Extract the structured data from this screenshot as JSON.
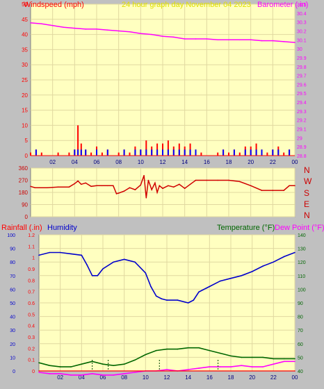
{
  "header": {
    "left_label": "Windspeed (mph)",
    "center_label": "24 hour graph day   November 04 2023",
    "right_label": "Barometer (.in)"
  },
  "middle": {
    "compass_labels": [
      "N",
      "W",
      "S",
      "E",
      "N"
    ]
  },
  "lower_header": {
    "rainfall_label": "Rainfall (.in)",
    "humidity_label": "Humidity",
    "temperature_label": "Temperature (°F)",
    "dewpoint_label": "Dew Point (°F)"
  },
  "colors": {
    "plot_bg": "#ffffc0",
    "wind": "#ff0000",
    "gust": "#0000ff",
    "barometer": "#ff00ff",
    "direction": "#d00000",
    "humidity": "#0000cc",
    "temperature": "#006600",
    "dewpoint": "#ff00ff",
    "rain": "#ff0000",
    "title": "#e0e000"
  },
  "chart_data": [
    {
      "type": "line",
      "name": "wind-barometer",
      "x_ticks": [
        "02",
        "04",
        "06",
        "08",
        "10",
        "12",
        "14",
        "16",
        "18",
        "20",
        "22",
        "00"
      ],
      "x_range_hours": [
        0,
        24
      ],
      "y_left_ticks": [
        0,
        5,
        10,
        15,
        20,
        25,
        30,
        35,
        40,
        45,
        50
      ],
      "y_left_range": [
        0,
        50
      ],
      "y_right_ticks": [
        "28.8",
        "28.9",
        "29",
        "29.1",
        "29.2",
        "29.3",
        "29.4",
        "29.5",
        "29.6",
        "29.7",
        "29.8",
        "29.9",
        "30",
        "30.1",
        "30.2",
        "30.3",
        "30.4",
        "30.5"
      ],
      "y_right_range": [
        28.8,
        30.5
      ],
      "series": [
        {
          "name": "Barometer (.in)",
          "axis": "right",
          "x": [
            0,
            1,
            2,
            3,
            4,
            5,
            6,
            7,
            8,
            9,
            10,
            11,
            12,
            13,
            14,
            15,
            16,
            17,
            18,
            19,
            20,
            21,
            22,
            23,
            24
          ],
          "y": [
            30.29,
            30.28,
            30.26,
            30.24,
            30.23,
            30.22,
            30.22,
            30.21,
            30.2,
            30.19,
            30.17,
            30.16,
            30.14,
            30.13,
            30.11,
            30.11,
            30.11,
            30.1,
            30.1,
            30.1,
            30.1,
            30.09,
            30.09,
            30.08,
            30.07
          ]
        },
        {
          "name": "Windspeed (mph)",
          "axis": "left",
          "x": [
            0,
            0.5,
            1,
            1.5,
            2,
            2.5,
            3,
            3.5,
            4,
            4.3,
            4.6,
            5,
            5.5,
            6,
            6.5,
            7,
            7.5,
            8,
            8.5,
            9,
            9.5,
            10,
            10.5,
            11,
            11.5,
            12,
            12.5,
            13,
            13.5,
            14,
            14.5,
            15,
            15.5,
            16,
            16.5,
            17,
            17.5,
            18,
            18.5,
            19,
            19.5,
            20,
            20.5,
            21,
            21.5,
            22,
            22.5,
            23,
            23.5,
            24
          ],
          "y": [
            1,
            2,
            1,
            0,
            0,
            1,
            0,
            1,
            2,
            10,
            4,
            2,
            1,
            3,
            1,
            2,
            0,
            1,
            2,
            1,
            3,
            2,
            5,
            3,
            4,
            4,
            5,
            3,
            4,
            3,
            4,
            2,
            1,
            0,
            0,
            1,
            2,
            1,
            2,
            1,
            3,
            3,
            4,
            2,
            1,
            2,
            3,
            1,
            2,
            0
          ]
        }
      ]
    },
    {
      "type": "line",
      "name": "wind-direction",
      "y_ticks": [
        0,
        90,
        180,
        270,
        360
      ],
      "y_range": [
        0,
        360
      ],
      "series": [
        {
          "x": [
            0,
            0.4,
            0.8,
            1.5,
            2.5,
            3.5,
            4,
            4.3,
            4.6,
            5,
            5.5,
            6,
            6.5,
            7,
            7.5,
            7.8,
            8,
            8.5,
            9,
            9.5,
            10,
            10.3,
            10.5,
            10.7,
            11,
            11.3,
            11.5,
            11.7,
            12,
            12.5,
            13,
            13.5,
            14,
            14.5,
            15,
            16,
            17,
            18,
            19,
            20,
            21,
            22,
            23,
            23.5,
            24
          ],
          "y": [
            225,
            215,
            215,
            215,
            220,
            220,
            245,
            265,
            240,
            250,
            225,
            230,
            230,
            230,
            230,
            170,
            175,
            190,
            215,
            200,
            235,
            305,
            140,
            270,
            200,
            250,
            180,
            230,
            210,
            230,
            220,
            240,
            210,
            240,
            270,
            270,
            270,
            270,
            260,
            230,
            195,
            195,
            195,
            230,
            230
          ]
        }
      ]
    },
    {
      "type": "line",
      "name": "humidity-temperature",
      "x_ticks": [
        "02",
        "04",
        "06",
        "08",
        "10",
        "12",
        "14",
        "16",
        "18",
        "20",
        "22",
        "00"
      ],
      "x_range_hours": [
        0,
        24
      ],
      "y_left_ticks": [
        0,
        10,
        20,
        30,
        40,
        50,
        60,
        70,
        80,
        90,
        100
      ],
      "y_left_range": [
        0,
        100
      ],
      "y_rain_ticks": [
        "0",
        "0.1",
        "0.2",
        "0.3",
        "0.4",
        "0.5",
        "0.6",
        "0.7",
        "0.8",
        "0.9",
        "1",
        "1.1",
        "1.2"
      ],
      "y_rain_range": [
        0,
        1.2
      ],
      "y_right_ticks": [
        40,
        50,
        60,
        70,
        80,
        90,
        100,
        110,
        120,
        130,
        140
      ],
      "y_right_range": [
        40,
        140
      ],
      "series": [
        {
          "name": "Humidity",
          "axis": "left",
          "x": [
            0,
            1,
            2,
            3,
            4,
            4.5,
            5,
            5.5,
            6,
            7,
            8,
            9,
            10,
            10.5,
            11,
            11.5,
            12,
            13,
            14,
            14.5,
            15,
            16,
            17,
            18,
            19,
            20,
            21,
            22,
            23,
            24
          ],
          "y": [
            85,
            87,
            87,
            86,
            85,
            78,
            70,
            70,
            75,
            80,
            82,
            80,
            72,
            62,
            55,
            53,
            52,
            52,
            50,
            52,
            58,
            62,
            66,
            68,
            70,
            73,
            77,
            80,
            84,
            87
          ]
        },
        {
          "name": "Temperature (°F)",
          "axis": "right",
          "x": [
            0,
            1,
            2,
            3,
            4,
            5,
            6,
            7,
            8,
            9,
            10,
            11,
            12,
            13,
            14,
            15,
            16,
            17,
            18,
            19,
            20,
            21,
            22,
            23,
            24
          ],
          "y": [
            46,
            44,
            43,
            43,
            45,
            47,
            45,
            44,
            45,
            48,
            52,
            55,
            56,
            56,
            57,
            57,
            55,
            53,
            51,
            50,
            50,
            50,
            49,
            49,
            49
          ]
        },
        {
          "name": "Dew Point (°F)",
          "axis": "right",
          "x": [
            0,
            1,
            2,
            3,
            4,
            5,
            6,
            7,
            8,
            9,
            10,
            11,
            12,
            13,
            14,
            15,
            16,
            17,
            18,
            19,
            20,
            21,
            22,
            23,
            24
          ],
          "y": [
            39,
            38,
            38,
            37,
            37,
            38,
            37,
            37,
            38,
            39,
            40,
            40,
            41,
            40,
            41,
            42,
            43,
            43,
            43,
            44,
            43,
            43,
            45,
            47,
            47
          ]
        },
        {
          "name": "Rainfall (.in)",
          "axis": "rain",
          "x": [
            0,
            24
          ],
          "y": [
            0,
            0
          ]
        }
      ]
    }
  ]
}
